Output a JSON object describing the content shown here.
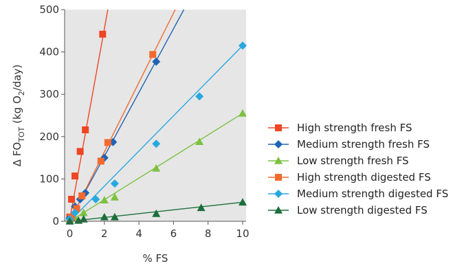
{
  "chart_data": {
    "type": "scatter",
    "title": "",
    "xlabel": "% FS",
    "ylabel": {
      "prefix": "Δ FO",
      "subscript": "TOT",
      "unit_start": " (kg O",
      "unit_subscript": "2",
      "unit_end": "/day)"
    },
    "xlim": [
      -0.3,
      10.2
    ],
    "ylim": [
      0,
      500
    ],
    "x_ticks": [
      0,
      2,
      4,
      6,
      8,
      10
    ],
    "y_ticks": [
      0,
      100,
      200,
      300,
      400,
      500
    ],
    "grid": false,
    "plot_background": "#e6e6e6",
    "legend_position": "right",
    "series": [
      {
        "name": "High strength fresh FS",
        "color": "#ee4523",
        "marker": "square",
        "points": [
          [
            0,
            10
          ],
          [
            0.1,
            52
          ],
          [
            0.3,
            107
          ],
          [
            0.6,
            165
          ],
          [
            0.9,
            216
          ],
          [
            1.9,
            442
          ]
        ],
        "fit": [
          [
            0,
            5
          ],
          [
            2.2,
            500
          ]
        ]
      },
      {
        "name": "Medium strength fresh FS",
        "color": "#1f63b3",
        "marker": "diamond",
        "points": [
          [
            0,
            8
          ],
          [
            0.3,
            35
          ],
          [
            0.6,
            52
          ],
          [
            0.9,
            67
          ],
          [
            2.0,
            150
          ],
          [
            2.5,
            187
          ],
          [
            5.0,
            377
          ]
        ],
        "fit": [
          [
            0,
            3
          ],
          [
            6.6,
            500
          ]
        ]
      },
      {
        "name": "Low strength fresh FS",
        "color": "#7cc142",
        "marker": "triangle",
        "points": [
          [
            0,
            3
          ],
          [
            0.3,
            8
          ],
          [
            0.8,
            20
          ],
          [
            2.0,
            50
          ],
          [
            2.6,
            57
          ],
          [
            5.0,
            125
          ],
          [
            7.5,
            188
          ],
          [
            10.0,
            255
          ]
        ],
        "fit": [
          [
            0,
            0
          ],
          [
            10.0,
            255
          ]
        ]
      },
      {
        "name": "High strength digested FS",
        "color": "#f26a2e",
        "marker": "square",
        "points": [
          [
            0.1,
            10
          ],
          [
            0.4,
            30
          ],
          [
            0.7,
            60
          ],
          [
            1.8,
            142
          ],
          [
            2.2,
            186
          ],
          [
            4.8,
            394
          ]
        ],
        "fit": [
          [
            0,
            0
          ],
          [
            6.1,
            500
          ]
        ]
      },
      {
        "name": "Medium strength digested FS",
        "color": "#29a8df",
        "marker": "diamond",
        "points": [
          [
            0,
            5
          ],
          [
            0.3,
            20
          ],
          [
            1.5,
            52
          ],
          [
            2.6,
            89
          ],
          [
            5.0,
            183
          ],
          [
            7.5,
            295
          ],
          [
            10.0,
            415
          ]
        ],
        "fit": [
          [
            0,
            0
          ],
          [
            10.0,
            415
          ]
        ]
      },
      {
        "name": "Low strength digested FS",
        "color": "#1b6e3a",
        "marker": "triangle",
        "points": [
          [
            0,
            0
          ],
          [
            0.5,
            2
          ],
          [
            0.8,
            5
          ],
          [
            2.0,
            10
          ],
          [
            2.6,
            10
          ],
          [
            5.0,
            18
          ],
          [
            7.6,
            32
          ],
          [
            10.0,
            45
          ]
        ],
        "fit": [
          [
            0,
            0
          ],
          [
            10.0,
            45
          ]
        ]
      }
    ]
  }
}
